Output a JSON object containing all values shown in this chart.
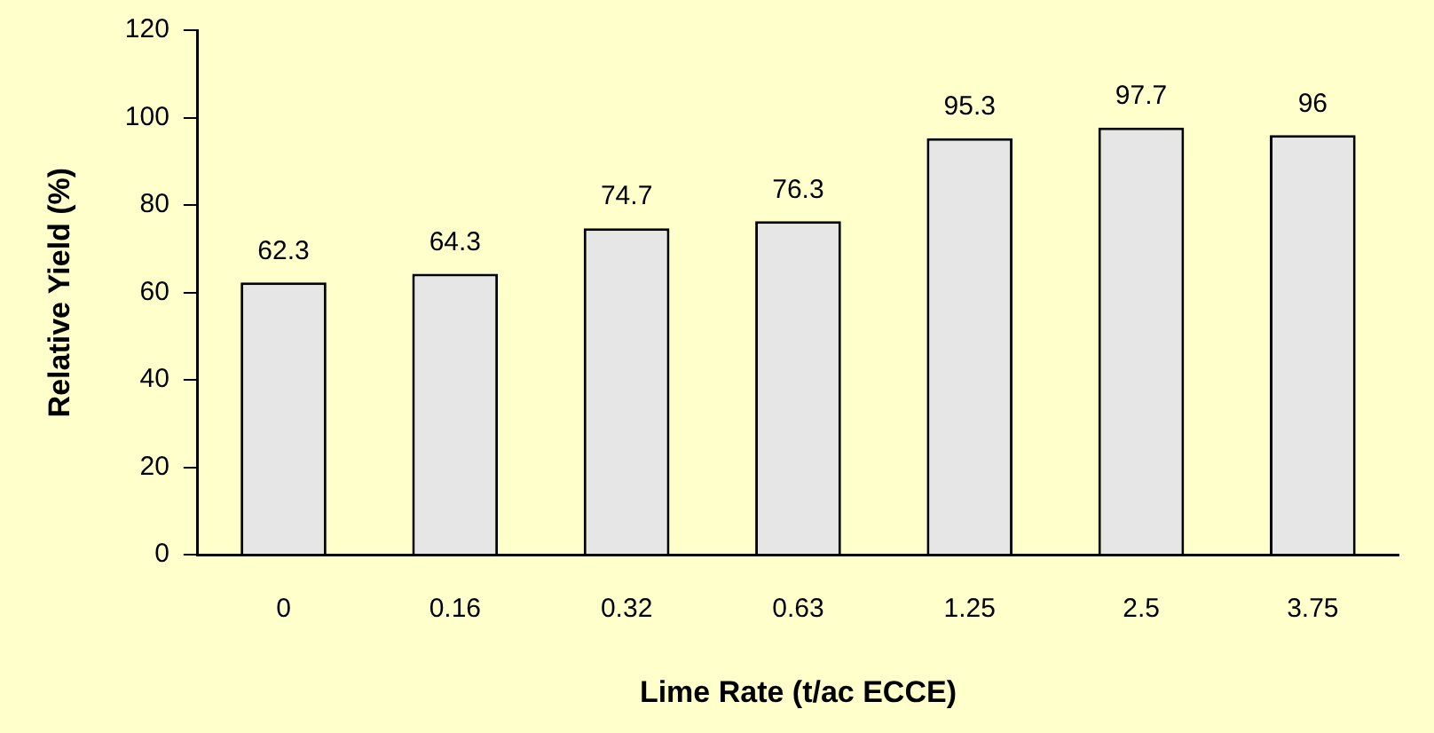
{
  "chart_data": {
    "type": "bar",
    "xlabel": "Lime Rate (t/ac ECCE)",
    "ylabel": "Relative Yield (%)",
    "categories": [
      "0",
      "0.16",
      "0.32",
      "0.63",
      "1.25",
      "2.5",
      "3.75"
    ],
    "values": [
      62.3,
      64.3,
      74.7,
      76.3,
      95.3,
      97.7,
      96
    ],
    "color": "#e6e6e6",
    "ylim": [
      0,
      120
    ],
    "yticks": [
      0,
      20,
      40,
      60,
      80,
      100,
      120
    ],
    "grid": false,
    "legend": false,
    "data_labels": true
  }
}
